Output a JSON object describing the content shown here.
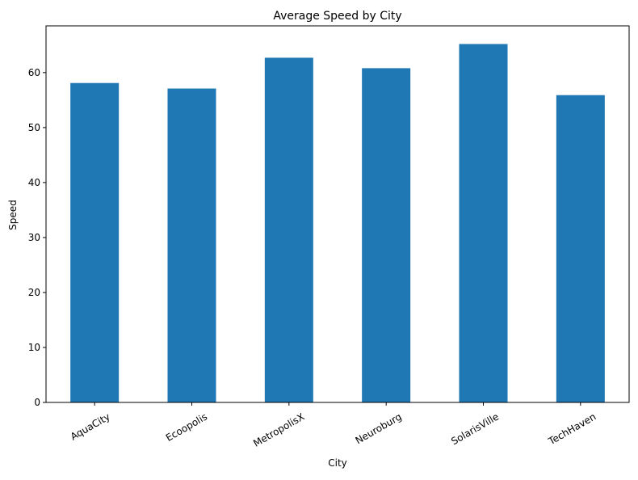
{
  "chart_data": {
    "type": "bar",
    "title": "Average Speed by City",
    "xlabel": "City",
    "ylabel": "Speed",
    "categories": [
      "AquaCity",
      "Ecoopolis",
      "MetropolisX",
      "Neuroburg",
      "SolarisVille",
      "TechHaven"
    ],
    "values": [
      58.1,
      57.1,
      62.7,
      60.8,
      65.2,
      55.9
    ],
    "ylim": [
      0,
      68.5
    ],
    "yticks": [
      "0",
      "10",
      "20",
      "30",
      "40",
      "50",
      "60"
    ],
    "ytick_values": [
      0,
      10,
      20,
      30,
      40,
      50,
      60
    ],
    "bar_color": "#1f77b4",
    "grid": false,
    "legend": "none"
  }
}
